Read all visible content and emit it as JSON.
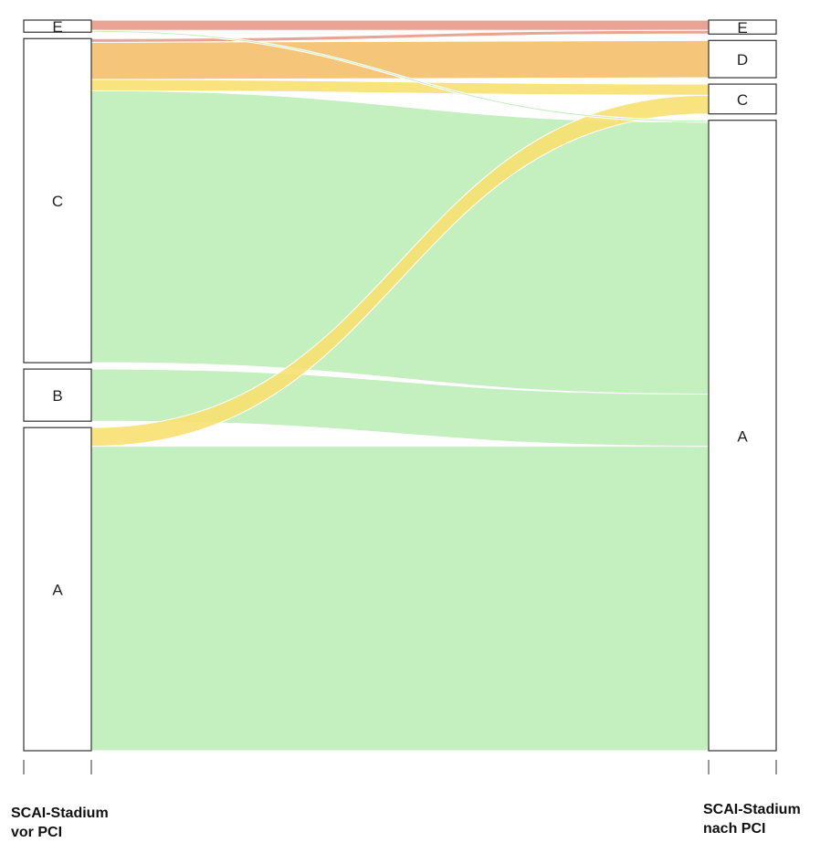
{
  "chart_data": {
    "type": "sankey",
    "axes": [
      {
        "lines": [
          "SCAI-Stadium",
          "vor PCI"
        ]
      },
      {
        "lines": [
          "SCAI-Stadium",
          "nach PCI"
        ]
      }
    ],
    "stages": [
      {
        "nodes": [
          "E",
          "C",
          "B",
          "A"
        ]
      },
      {
        "nodes": [
          "E",
          "D",
          "C",
          "A"
        ]
      }
    ],
    "colors": {
      "A": "#c4efbf",
      "C": "#f8e070",
      "D": "#f4c06c",
      "E": "#e89a8a"
    },
    "flows": [
      {
        "from": "E",
        "to": "E",
        "value": 11,
        "color": "E"
      },
      {
        "from": "E",
        "to": "A",
        "value": 2,
        "color": "A"
      },
      {
        "from": "C",
        "to": "E",
        "value": 4,
        "color": "E"
      },
      {
        "from": "C",
        "to": "D",
        "value": 40,
        "color": "D"
      },
      {
        "from": "C",
        "to": "C",
        "value": 12,
        "color": "C"
      },
      {
        "from": "C",
        "to": "A",
        "value": 292,
        "color": "A"
      },
      {
        "from": "B",
        "to": "A",
        "value": 56,
        "color": "A"
      },
      {
        "from": "A",
        "to": "C",
        "value": 20,
        "color": "C"
      },
      {
        "from": "A",
        "to": "A",
        "value": 327,
        "color": "A"
      }
    ]
  }
}
